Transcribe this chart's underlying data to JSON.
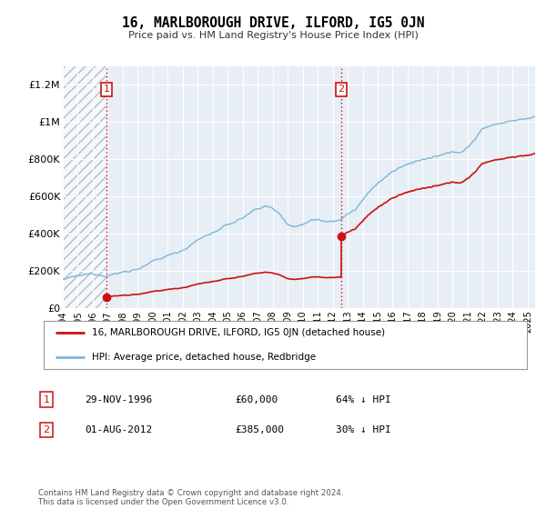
{
  "title": "16, MARLBOROUGH DRIVE, ILFORD, IG5 0JN",
  "subtitle": "Price paid vs. HM Land Registry's House Price Index (HPI)",
  "sale1_date": 1996.91,
  "sale1_price": 60000,
  "sale1_label": "1",
  "sale2_date": 2012.58,
  "sale2_price": 385000,
  "sale2_label": "2",
  "hpi_color": "#7ab8d9",
  "price_color": "#cc1111",
  "marker_color": "#cc1111",
  "plot_bg": "#e8eef5",
  "hatch_color": "#c8d4df",
  "ylim": [
    0,
    1300000
  ],
  "xlim": [
    1994,
    2025.5
  ],
  "yticks": [
    0,
    200000,
    400000,
    600000,
    800000,
    1000000,
    1200000
  ],
  "ytick_labels": [
    "£0",
    "£200K",
    "£400K",
    "£600K",
    "£800K",
    "£1M",
    "£1.2M"
  ],
  "xticks": [
    1994,
    1995,
    1996,
    1997,
    1998,
    1999,
    2000,
    2001,
    2002,
    2003,
    2004,
    2005,
    2006,
    2007,
    2008,
    2009,
    2010,
    2011,
    2012,
    2013,
    2014,
    2015,
    2016,
    2017,
    2018,
    2019,
    2020,
    2021,
    2022,
    2023,
    2024,
    2025
  ],
  "legend_label_red": "16, MARLBOROUGH DRIVE, ILFORD, IG5 0JN (detached house)",
  "legend_label_blue": "HPI: Average price, detached house, Redbridge",
  "annotation1_date": "29-NOV-1996",
  "annotation1_price": "£60,000",
  "annotation1_hpi": "64% ↓ HPI",
  "annotation2_date": "01-AUG-2012",
  "annotation2_price": "£385,000",
  "annotation2_hpi": "30% ↓ HPI",
  "footer": "Contains HM Land Registry data © Crown copyright and database right 2024.\nThis data is licensed under the Open Government Licence v3.0."
}
